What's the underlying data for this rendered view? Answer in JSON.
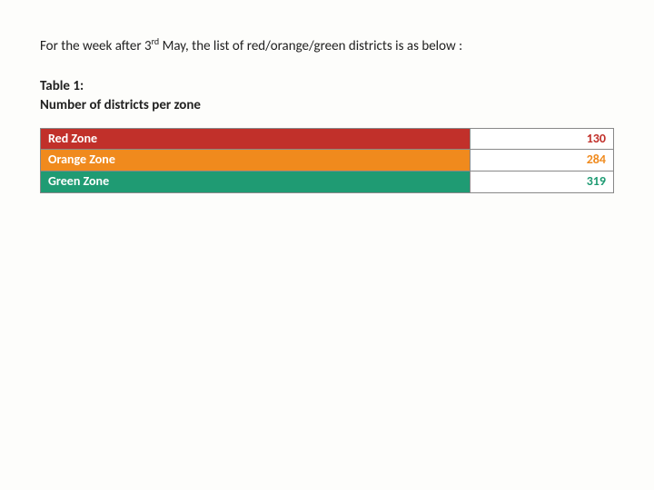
{
  "intro": {
    "prefix": "For the week after 3",
    "sup": "rd",
    "suffix": " May, the list of red/orange/green districts is as below :"
  },
  "table": {
    "title_line1": "Table 1:",
    "title_line2": "Number of districts per zone",
    "border_color": "#888888",
    "background_color": "#fdfdfb",
    "rows": [
      {
        "label": "Red Zone",
        "value": "130",
        "label_bg": "#c1302a",
        "value_color": "#c1302a"
      },
      {
        "label": "Orange Zone",
        "value": "284",
        "label_bg": "#f08a1d",
        "value_color": "#f08a1d"
      },
      {
        "label": "Green Zone",
        "value": "319",
        "label_bg": "#1f9b73",
        "value_color": "#1f9b73"
      }
    ]
  }
}
